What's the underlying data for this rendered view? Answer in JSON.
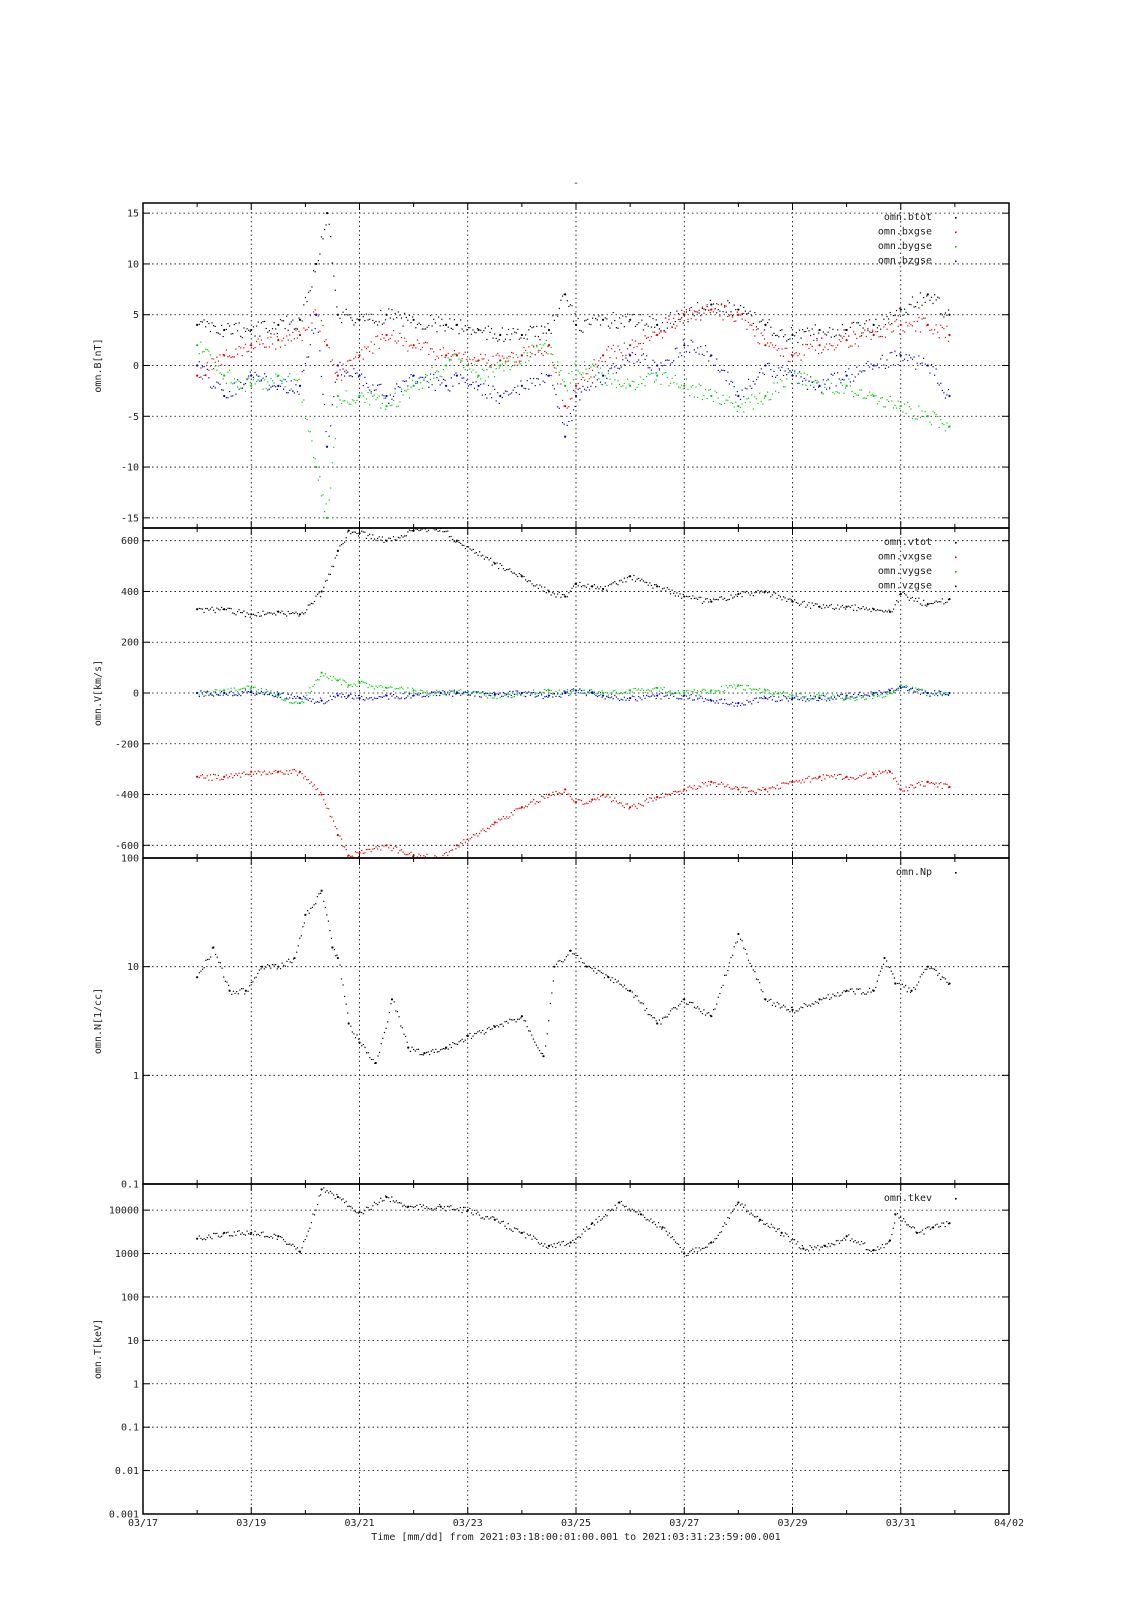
{
  "title": "-",
  "colors": {
    "btot": "#000000",
    "bx": "#dd0000",
    "by": "#00cc00",
    "bz": "#0000cc",
    "grid": "#000000"
  },
  "xaxis": {
    "ticks": [
      "03/17",
      "03/19",
      "03/21",
      "03/23",
      "03/25",
      "03/27",
      "03/29",
      "03/31",
      "04/02"
    ],
    "label": "Time [mm/dd]  from 2021:03:18:00:01:00.001  to  2021:03:31:23:59:00.001",
    "range_days": [
      17,
      33
    ]
  },
  "chart_data": [
    {
      "type": "scatter",
      "ylabel": "omn.B[nT]",
      "ylim": [
        -16,
        16
      ],
      "yticks": [
        "15",
        "10",
        "5",
        "0",
        "-5",
        "-10",
        "-15"
      ],
      "ytick_values": [
        15,
        10,
        5,
        0,
        -5,
        -10,
        -15
      ],
      "legend": [
        "omn.btot",
        "omn.bxgse",
        "omn.bygse",
        "omn.bzgse"
      ],
      "legend_placement": "top-right",
      "grid": true,
      "series": [
        {
          "name": "omn.btot",
          "color": "btot",
          "x": [
            18.0,
            18.5,
            19.0,
            19.5,
            19.9,
            20.2,
            20.4,
            20.6,
            21.0,
            21.5,
            22.0,
            22.6,
            22.8,
            23.2,
            23.6,
            24.0,
            24.5,
            24.8,
            25.0,
            25.5,
            26.0,
            26.5,
            27.0,
            27.5,
            28.0,
            28.5,
            29.0,
            29.5,
            30.0,
            30.5,
            31.0,
            31.5,
            31.9
          ],
          "y": [
            4,
            3.5,
            3.5,
            4,
            4.5,
            10,
            15,
            5,
            4.5,
            5,
            4.5,
            4,
            4,
            3.5,
            3,
            3,
            3.5,
            7,
            4,
            4.5,
            4.5,
            4,
            5,
            6,
            5.5,
            4,
            3,
            3.5,
            3.5,
            4,
            5.5,
            7,
            5
          ]
        },
        {
          "name": "omn.bxgse",
          "color": "bx",
          "x": [
            18.0,
            18.5,
            19.0,
            19.5,
            19.9,
            20.2,
            20.4,
            20.6,
            21.0,
            21.5,
            22.0,
            22.6,
            22.8,
            23.2,
            23.6,
            24.0,
            24.5,
            24.8,
            25.0,
            25.5,
            26.0,
            26.5,
            27.0,
            27.5,
            28.0,
            28.5,
            29.0,
            29.5,
            30.0,
            30.5,
            31.0,
            31.5,
            31.9
          ],
          "y": [
            -1,
            1,
            2,
            2.5,
            3,
            5,
            2,
            -1,
            1,
            3,
            2,
            1,
            1,
            0.5,
            0.5,
            1,
            2,
            -4,
            -2,
            1,
            2,
            3,
            5,
            5.5,
            5,
            2,
            1,
            2,
            2.5,
            3,
            4,
            4,
            3
          ]
        },
        {
          "name": "omn.bygse",
          "color": "by",
          "x": [
            18.0,
            18.5,
            19.0,
            19.5,
            19.9,
            20.2,
            20.4,
            20.6,
            21.0,
            21.5,
            22.0,
            22.6,
            22.8,
            23.2,
            23.6,
            24.0,
            24.5,
            24.8,
            25.0,
            25.5,
            26.0,
            26.5,
            27.0,
            27.5,
            28.0,
            28.5,
            29.0,
            29.5,
            30.0,
            30.5,
            31.0,
            31.5,
            31.9
          ],
          "y": [
            2,
            -1,
            -2,
            -1,
            -2,
            -10,
            -15,
            -3,
            -3,
            -4,
            -2,
            0,
            1,
            -1,
            0,
            1,
            2,
            -2,
            0,
            -1,
            -2,
            -1,
            -2,
            -3,
            -4,
            -3,
            -1,
            -2,
            -2,
            -3,
            -4,
            -5,
            -6
          ]
        },
        {
          "name": "omn.bzgse",
          "color": "bz",
          "x": [
            18.0,
            18.5,
            19.0,
            19.5,
            19.9,
            20.2,
            20.4,
            20.6,
            21.0,
            21.5,
            22.0,
            22.6,
            22.8,
            23.2,
            23.6,
            24.0,
            24.5,
            24.8,
            25.0,
            25.5,
            26.0,
            26.5,
            27.0,
            27.5,
            28.0,
            28.5,
            29.0,
            29.5,
            30.0,
            30.5,
            31.0,
            31.5,
            31.9
          ],
          "y": [
            0,
            -3,
            -1,
            -2,
            -2,
            5,
            -8,
            0,
            -1,
            -3,
            -1,
            -2,
            -1,
            -2,
            -3,
            -2,
            -1,
            -7,
            -3,
            -1,
            1,
            0,
            2,
            1,
            -3,
            0,
            -1,
            -2,
            -1,
            0,
            1,
            0,
            -3
          ]
        }
      ]
    },
    {
      "type": "scatter",
      "ylabel": "omn.V[km/s]",
      "ylim": [
        -650,
        650
      ],
      "yticks": [
        "600",
        "400",
        "200",
        "0",
        "-200",
        "-400",
        "-600"
      ],
      "ytick_values": [
        600,
        400,
        200,
        0,
        -200,
        -400,
        -600
      ],
      "legend": [
        "omn.vtot",
        "omn.vxgse",
        "omn.vygse",
        "omn.vzgse"
      ],
      "legend_placement": "top-right",
      "grid": true,
      "series": [
        {
          "name": "omn.vtot",
          "color": "btot",
          "x": [
            18.0,
            18.5,
            19.0,
            19.5,
            19.9,
            20.3,
            20.6,
            20.8,
            21.0,
            21.5,
            22.0,
            22.5,
            22.8,
            23.5,
            24.0,
            24.5,
            24.8,
            25.0,
            25.3,
            25.5,
            26.0,
            26.5,
            27.0,
            27.5,
            28.0,
            28.5,
            29.0,
            29.5,
            30.0,
            30.5,
            30.8,
            31.0,
            31.5,
            31.9
          ],
          "y": [
            330,
            330,
            310,
            320,
            310,
            400,
            560,
            640,
            630,
            600,
            640,
            650,
            600,
            510,
            460,
            400,
            380,
            430,
            420,
            410,
            460,
            420,
            380,
            360,
            390,
            400,
            360,
            340,
            340,
            330,
            320,
            390,
            350,
            370
          ]
        },
        {
          "name": "omn.vxgse",
          "color": "bx",
          "x": [
            18.0,
            18.5,
            19.0,
            19.5,
            19.9,
            20.3,
            20.6,
            20.8,
            21.0,
            21.5,
            22.0,
            22.5,
            22.8,
            23.5,
            24.0,
            24.5,
            24.8,
            25.0,
            25.3,
            25.5,
            26.0,
            26.5,
            27.0,
            27.5,
            28.0,
            28.5,
            29.0,
            29.5,
            30.0,
            30.5,
            30.8,
            31.0,
            31.5,
            31.9
          ],
          "y": [
            -330,
            -330,
            -310,
            -310,
            -310,
            -400,
            -560,
            -640,
            -630,
            -600,
            -640,
            -650,
            -600,
            -510,
            -450,
            -400,
            -380,
            -430,
            -420,
            -400,
            -450,
            -410,
            -380,
            -350,
            -380,
            -380,
            -350,
            -330,
            -330,
            -320,
            -310,
            -380,
            -350,
            -370
          ]
        },
        {
          "name": "omn.vygse",
          "color": "by",
          "x": [
            18.0,
            18.5,
            19.0,
            19.5,
            19.9,
            20.3,
            20.6,
            20.8,
            21.0,
            21.5,
            22.0,
            22.5,
            22.8,
            23.5,
            24.0,
            24.5,
            24.8,
            25.0,
            25.3,
            25.5,
            26.0,
            26.5,
            27.0,
            27.5,
            28.0,
            28.5,
            29.0,
            29.5,
            30.0,
            30.5,
            30.8,
            31.0,
            31.5,
            31.9
          ],
          "y": [
            0,
            10,
            20,
            -10,
            -40,
            80,
            50,
            30,
            40,
            20,
            10,
            0,
            5,
            -10,
            0,
            10,
            5,
            10,
            5,
            0,
            10,
            20,
            0,
            10,
            30,
            10,
            -10,
            -10,
            -20,
            -10,
            0,
            30,
            0,
            0
          ]
        },
        {
          "name": "omn.vzgse",
          "color": "bz",
          "x": [
            18.0,
            18.5,
            19.0,
            19.5,
            19.9,
            20.3,
            20.6,
            20.8,
            21.0,
            21.5,
            22.0,
            22.5,
            22.8,
            23.5,
            24.0,
            24.5,
            24.8,
            25.0,
            25.3,
            25.5,
            26.0,
            26.5,
            27.0,
            27.5,
            28.0,
            28.5,
            29.0,
            29.5,
            30.0,
            30.5,
            30.8,
            31.0,
            31.5,
            31.9
          ],
          "y": [
            0,
            0,
            5,
            -5,
            -20,
            -30,
            -10,
            -10,
            -20,
            -10,
            -10,
            0,
            0,
            -5,
            0,
            -10,
            0,
            10,
            0,
            -10,
            -20,
            -10,
            -10,
            -30,
            -40,
            -20,
            -20,
            -20,
            -10,
            0,
            10,
            20,
            0,
            0
          ]
        }
      ]
    },
    {
      "type": "scatter",
      "ylabel": "omn.N[1/cc]",
      "yscale": "log",
      "ylim": [
        0.1,
        100
      ],
      "yticks": [
        "100",
        "10",
        "1",
        "0.1"
      ],
      "ytick_values": [
        100,
        10,
        1,
        0.1
      ],
      "legend": [
        "omn.Np"
      ],
      "legend_placement": "top-right",
      "grid": true,
      "series": [
        {
          "name": "omn.Np",
          "color": "btot",
          "x": [
            18.0,
            18.3,
            18.6,
            18.9,
            19.2,
            19.5,
            19.8,
            20.0,
            20.3,
            20.5,
            20.6,
            20.8,
            21.0,
            21.3,
            21.6,
            21.9,
            22.2,
            22.6,
            23.0,
            23.5,
            24.0,
            24.4,
            24.6,
            24.9,
            25.2,
            25.6,
            26.0,
            26.5,
            27.0,
            27.5,
            28.0,
            28.5,
            29.0,
            29.5,
            30.0,
            30.5,
            30.7,
            30.9,
            31.2,
            31.5,
            31.9
          ],
          "y": [
            8,
            15,
            6,
            6,
            10,
            10,
            12,
            30,
            50,
            15,
            12,
            3,
            2,
            1.3,
            5,
            1.8,
            1.6,
            1.8,
            2.3,
            2.8,
            3.5,
            1.5,
            10,
            14,
            10,
            8,
            6,
            3,
            5,
            3.5,
            20,
            5,
            4,
            5,
            6,
            6,
            12,
            7,
            6,
            10,
            7
          ]
        }
      ]
    },
    {
      "type": "scatter",
      "ylabel": "omn.T[keV]",
      "yscale": "log",
      "ylim": [
        0.001,
        40000
      ],
      "yticks": [
        "10000",
        "1000",
        "100",
        "10",
        "1",
        "0.1",
        "0.01",
        "0.001"
      ],
      "ytick_values": [
        10000,
        1000,
        100,
        10,
        1,
        0.1,
        0.01,
        0.001
      ],
      "legend": [
        "omn.tkev"
      ],
      "legend_placement": "top-right",
      "grid": true,
      "series": [
        {
          "name": "omn.tkev",
          "color": "btot",
          "x": [
            18.0,
            18.5,
            19.0,
            19.5,
            19.9,
            20.3,
            20.6,
            21.0,
            21.5,
            21.9,
            22.5,
            23.0,
            23.5,
            24.0,
            24.5,
            24.9,
            25.3,
            25.8,
            26.2,
            26.6,
            27.0,
            27.5,
            28.0,
            28.4,
            28.8,
            29.2,
            29.6,
            30.0,
            30.5,
            30.8,
            30.9,
            31.3,
            31.6,
            31.9
          ],
          "y": [
            2200,
            3000,
            3000,
            2500,
            1100,
            30000,
            20000,
            9000,
            20000,
            12000,
            12000,
            10000,
            6000,
            3000,
            1500,
            1800,
            5000,
            15000,
            8000,
            4000,
            1000,
            1800,
            15000,
            6000,
            3000,
            1300,
            1500,
            2500,
            1200,
            2000,
            8000,
            3000,
            4000,
            5000
          ]
        }
      ]
    }
  ]
}
